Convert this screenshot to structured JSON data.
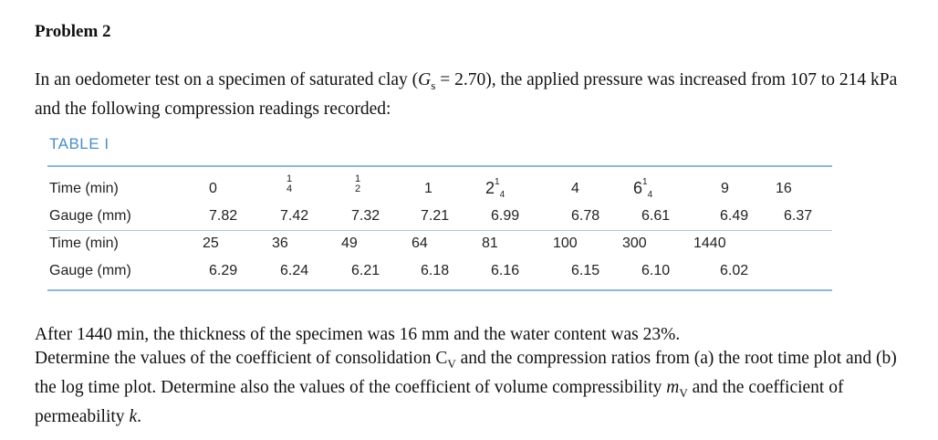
{
  "heading": "Problem 2",
  "intro": {
    "pre": "In an oedometer test on a specimen of saturated clay (",
    "gs_sym": "G",
    "gs_sub": "s",
    "gs_val": " = 2.70), the applied pressure was increased from 107 to 214 kPa and the following compression readings recorded:"
  },
  "table": {
    "title": "TABLE I",
    "row_labels": {
      "time": "Time (min)",
      "gauge": "Gauge (mm)"
    },
    "row1_time": [
      "0",
      "",
      "",
      "1",
      "",
      "4",
      "",
      "9",
      "16"
    ],
    "row1_gauge": [
      "7.82",
      "7.42",
      "7.32",
      "7.21",
      "6.99",
      "6.78",
      "6.61",
      "6.49",
      "6.37"
    ],
    "row2_time": [
      "25",
      "36",
      "49",
      "64",
      "81",
      "100",
      "300",
      "1440"
    ],
    "row2_gauge": [
      "6.29",
      "6.24",
      "6.21",
      "6.18",
      "6.16",
      "6.15",
      "6.10",
      "6.02"
    ],
    "fractions": {
      "quarter": {
        "num": "1",
        "den": "4"
      },
      "half": {
        "num": "1",
        "den": "2"
      },
      "two_quarter": {
        "whole": "2",
        "num": "1",
        "den": "4"
      },
      "six_quarter": {
        "whole": "6",
        "num": "1",
        "den": "4"
      }
    }
  },
  "after": {
    "line1": "After 1440 min, the thickness of the specimen was 16 mm and the water content was 23%.",
    "line2_pre": "Determine the values of the coefficient of consolidation C",
    "cv_sub": "V",
    "line2_post": " and the compression ratios from (a) the root time plot and (b) the log time plot. Determine also the values of the coefficient of volume compressibility ",
    "mv_sym": "m",
    "mv_sub": "V",
    "line3_mid": " and the coefficient of permeability ",
    "k_sym": "k",
    "end": "."
  }
}
